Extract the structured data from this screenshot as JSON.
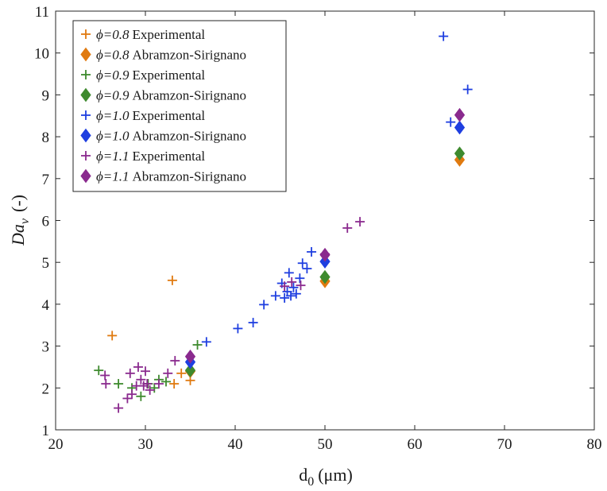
{
  "chart_data": {
    "type": "scatter",
    "title": "",
    "xlabel_main": "d",
    "xlabel_sub": "0",
    "xlabel_unit": "(μm)",
    "ylabel_main": "Da",
    "ylabel_sub": "v",
    "ylabel_unit": "(-)",
    "xlim": [
      20,
      80
    ],
    "ylim": [
      1,
      11
    ],
    "xticks": [
      20,
      30,
      40,
      50,
      60,
      70,
      80
    ],
    "yticks": [
      1,
      2,
      3,
      4,
      5,
      6,
      7,
      8,
      9,
      10,
      11
    ],
    "grid": false,
    "legend_position": "top-left",
    "series": [
      {
        "name": "ϕ=0.8 Experimental",
        "phi_label": "ϕ=0.8",
        "label_rest": "Experimental",
        "marker": "plus",
        "color": "#E07A10",
        "points": [
          [
            26.3,
            3.25
          ],
          [
            33.0,
            4.57
          ],
          [
            33.2,
            2.1
          ],
          [
            34.0,
            2.35
          ],
          [
            35.0,
            2.18
          ]
        ]
      },
      {
        "name": "ϕ=0.8 Abramzon-Sirignano",
        "phi_label": "ϕ=0.8",
        "label_rest": "Abramzon-Sirignano",
        "marker": "diamond",
        "color": "#E07A10",
        "points": [
          [
            35,
            2.4
          ],
          [
            50,
            4.55
          ],
          [
            65,
            7.45
          ]
        ]
      },
      {
        "name": "ϕ=0.9 Experimental",
        "phi_label": "ϕ=0.9",
        "label_rest": "Experimental",
        "marker": "plus",
        "color": "#3E8A2E",
        "points": [
          [
            24.8,
            2.42
          ],
          [
            27.0,
            2.1
          ],
          [
            28.5,
            2.0
          ],
          [
            29.5,
            1.8
          ],
          [
            30.3,
            2.1
          ],
          [
            31.0,
            2.0
          ],
          [
            31.5,
            2.2
          ],
          [
            32.3,
            2.15
          ],
          [
            35.8,
            3.03
          ]
        ]
      },
      {
        "name": "ϕ=0.9 Abramzon-Sirignano",
        "phi_label": "ϕ=0.9",
        "label_rest": "Abramzon-Sirignano",
        "marker": "diamond",
        "color": "#3E8A2E",
        "points": [
          [
            35,
            2.42
          ],
          [
            50,
            4.65
          ],
          [
            65,
            7.6
          ]
        ]
      },
      {
        "name": "ϕ=1.0 Experimental",
        "phi_label": "ϕ=1.0",
        "label_rest": "Experimental",
        "marker": "plus",
        "color": "#1F3FE0",
        "points": [
          [
            36.8,
            3.1
          ],
          [
            40.3,
            3.42
          ],
          [
            42.0,
            3.56
          ],
          [
            43.2,
            3.99
          ],
          [
            44.5,
            4.2
          ],
          [
            45.2,
            4.5
          ],
          [
            45.5,
            4.15
          ],
          [
            45.8,
            4.3
          ],
          [
            46.0,
            4.75
          ],
          [
            46.2,
            4.2
          ],
          [
            46.5,
            4.4
          ],
          [
            46.8,
            4.25
          ],
          [
            47.2,
            4.62
          ],
          [
            47.5,
            4.98
          ],
          [
            48.0,
            4.85
          ],
          [
            48.5,
            5.25
          ],
          [
            63.2,
            10.4
          ],
          [
            64.0,
            8.35
          ],
          [
            65.9,
            9.13
          ]
        ]
      },
      {
        "name": "ϕ=1.0 Abramzon-Sirignano",
        "phi_label": "ϕ=1.0",
        "label_rest": "Abramzon-Sirignano",
        "marker": "diamond",
        "color": "#1F3FE0",
        "points": [
          [
            35,
            2.62
          ],
          [
            50,
            5.02
          ],
          [
            65,
            8.22
          ]
        ]
      },
      {
        "name": "ϕ=1.1 Experimental",
        "phi_label": "ϕ=1.1",
        "label_rest": "Experimental",
        "marker": "plus",
        "color": "#8A2A8E",
        "points": [
          [
            25.5,
            2.3
          ],
          [
            25.6,
            2.1
          ],
          [
            27.0,
            1.52
          ],
          [
            28.0,
            1.75
          ],
          [
            28.3,
            2.35
          ],
          [
            28.5,
            1.85
          ],
          [
            29.0,
            2.05
          ],
          [
            29.2,
            2.5
          ],
          [
            29.5,
            2.2
          ],
          [
            29.8,
            2.05
          ],
          [
            30.0,
            2.4
          ],
          [
            30.2,
            2.1
          ],
          [
            30.5,
            1.95
          ],
          [
            31.5,
            2.1
          ],
          [
            32.5,
            2.35
          ],
          [
            33.3,
            2.65
          ],
          [
            45.5,
            4.43
          ],
          [
            46.3,
            4.53
          ],
          [
            47.3,
            4.45
          ],
          [
            50.0,
            5.2
          ],
          [
            52.5,
            5.82
          ],
          [
            53.9,
            5.97
          ]
        ]
      },
      {
        "name": "ϕ=1.1 Abramzon-Sirignano",
        "phi_label": "ϕ=1.1",
        "label_rest": "Abramzon-Sirignano",
        "marker": "diamond",
        "color": "#8A2A8E",
        "points": [
          [
            35,
            2.75
          ],
          [
            50,
            5.18
          ],
          [
            65,
            8.52
          ]
        ]
      }
    ]
  }
}
